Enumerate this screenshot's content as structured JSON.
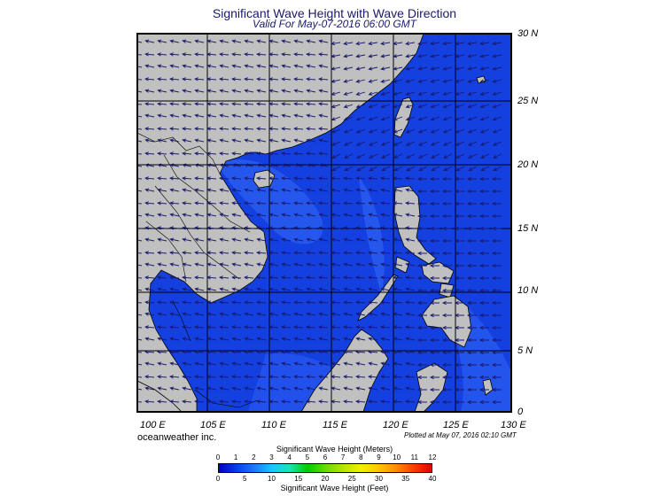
{
  "title": "Significant Wave Height with Wave Direction",
  "subtitle": "Valid For May-07-2016 06:00 GMT",
  "lat_labels": [
    "30 N",
    "25 N",
    "20 N",
    "15 N",
    "10 N",
    "5 N",
    "0"
  ],
  "lon_labels": [
    "100 E",
    "105 E",
    "110 E",
    "115 E",
    "120 E",
    "125 E",
    "130 E"
  ],
  "company": "oceanweather inc.",
  "plotted": "Plotted at May 07, 2016 02:10 GMT",
  "colorbar": {
    "title_meters": "Significant Wave Height (Meters)",
    "title_feet": "Significant Wave Height (Feet)",
    "meters_ticks": [
      "0",
      "1",
      "2",
      "3",
      "4",
      "5",
      "6",
      "7",
      "8",
      "9",
      "10",
      "11",
      "12"
    ],
    "feet_ticks": [
      "0",
      "5",
      "10",
      "15",
      "20",
      "25",
      "30",
      "35",
      "40"
    ],
    "colors": [
      "#0000c8",
      "#0a3cf0",
      "#1e78ff",
      "#14c8ff",
      "#14e6b4",
      "#00cc00",
      "#64dc00",
      "#b4e600",
      "#f0f000",
      "#ffc800",
      "#ff8c00",
      "#ff3c00",
      "#e60000"
    ]
  },
  "colors": {
    "land": "#c0c0c0",
    "sea": "#1440e0",
    "sea_light": "#3c6af0",
    "arrow": "#1a1a6e"
  }
}
